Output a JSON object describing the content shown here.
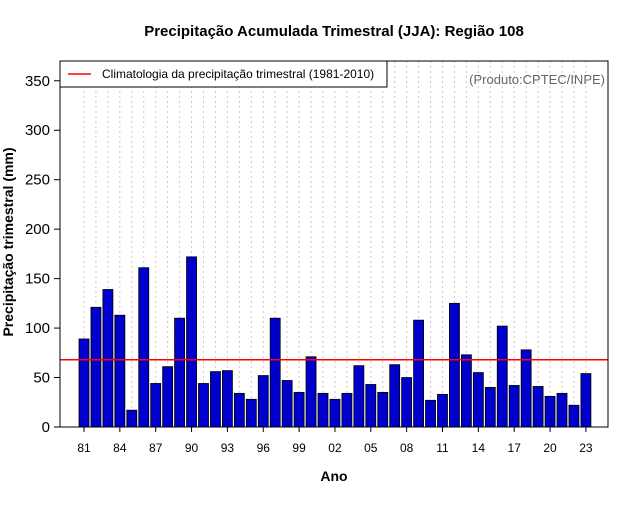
{
  "chart_data": {
    "type": "bar",
    "title": "Precipitação Acumulada Trimestral (JJA): Região 108",
    "xlabel": "Ano",
    "ylabel": "Precipitação trimestral (mm)",
    "ylim": [
      0,
      370
    ],
    "yticks": [
      0,
      50,
      100,
      150,
      200,
      250,
      300,
      350
    ],
    "year_start": 1981,
    "xtick_labels": [
      {
        "year": 1981,
        "label": "81"
      },
      {
        "year": 1984,
        "label": "84"
      },
      {
        "year": 1987,
        "label": "87"
      },
      {
        "year": 1990,
        "label": "90"
      },
      {
        "year": 1993,
        "label": "93"
      },
      {
        "year": 1996,
        "label": "96"
      },
      {
        "year": 1999,
        "label": "99"
      },
      {
        "year": 2002,
        "label": "02"
      },
      {
        "year": 2005,
        "label": "05"
      },
      {
        "year": 2008,
        "label": "08"
      },
      {
        "year": 2011,
        "label": "11"
      },
      {
        "year": 2014,
        "label": "14"
      },
      {
        "year": 2017,
        "label": "17"
      },
      {
        "year": 2020,
        "label": "20"
      },
      {
        "year": 2023,
        "label": "23"
      }
    ],
    "series": [
      {
        "name": "Precipitação trimestral",
        "color": "#0000cc",
        "values": [
          89,
          121,
          139,
          113,
          17,
          161,
          44,
          61,
          110,
          172,
          44,
          56,
          57,
          34,
          28,
          52,
          110,
          47,
          35,
          71,
          34,
          28,
          34,
          62,
          43,
          35,
          63,
          50,
          108,
          27,
          33,
          125,
          73,
          55,
          40,
          102,
          42,
          78,
          41,
          31,
          34,
          22,
          54
        ]
      }
    ],
    "climatology": {
      "label": "Climatologia da precipitação trimestral (1981-2010)",
      "value": 68,
      "color": "#ff0000"
    },
    "legend_position": "top-left",
    "credit": "(Produto:CPTEC/INPE)",
    "grid": "vertical-dotted"
  }
}
